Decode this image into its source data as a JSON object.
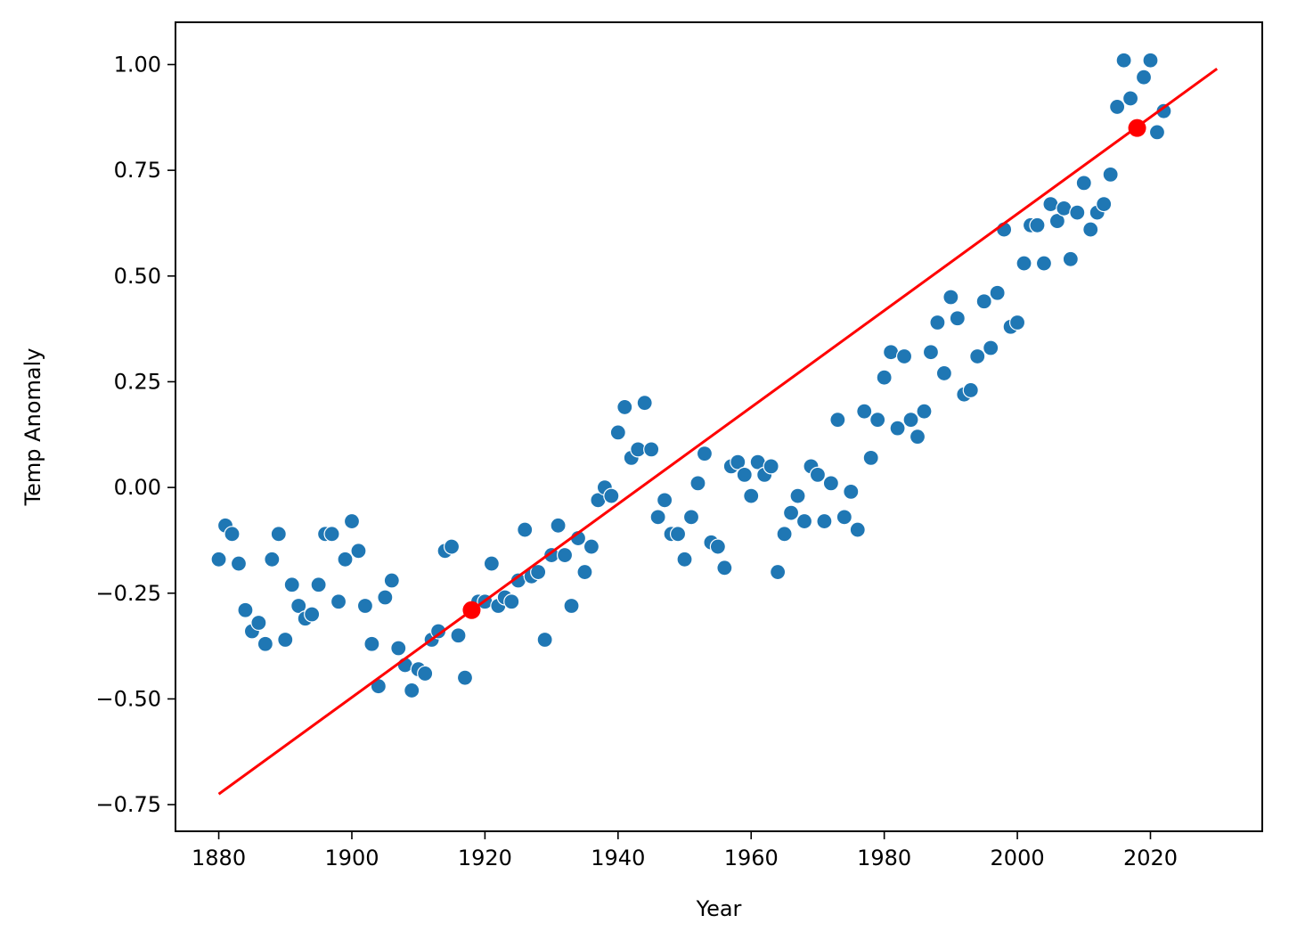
{
  "chart_data": {
    "type": "scatter",
    "title": "",
    "xlabel": "Year",
    "ylabel": "Temp Anomaly",
    "xlim": [
      1873.5,
      2036.8
    ],
    "ylim": [
      -0.813,
      1.1
    ],
    "xticks": [
      1880,
      1900,
      1920,
      1940,
      1960,
      1980,
      2000,
      2020
    ],
    "xtick_labels": [
      "1880",
      "1900",
      "1920",
      "1940",
      "1960",
      "1980",
      "2000",
      "2020"
    ],
    "yticks": [
      -0.75,
      -0.5,
      -0.25,
      0.0,
      0.25,
      0.5,
      0.75,
      1.0
    ],
    "ytick_labels": [
      "−0.75",
      "−0.50",
      "−0.25",
      "0.00",
      "0.25",
      "0.50",
      "0.75",
      "1.00"
    ],
    "grid": false,
    "colors": {
      "points": "#1f77b4",
      "trend": "#ff0000",
      "highlight": "#ff0000"
    },
    "series": [
      {
        "x": [
          1880,
          1881,
          1882,
          1883,
          1884,
          1885,
          1886,
          1887,
          1888,
          1889,
          1890,
          1891,
          1892,
          1893,
          1894,
          1895,
          1896,
          1897,
          1898,
          1899,
          1900,
          1901,
          1902,
          1903,
          1904,
          1905,
          1906,
          1907,
          1908,
          1909,
          1910,
          1911,
          1912,
          1913,
          1914,
          1915,
          1916,
          1917,
          1918,
          1919,
          1920,
          1921,
          1922,
          1923,
          1924,
          1925,
          1926,
          1927,
          1928,
          1929,
          1930,
          1931,
          1932,
          1933,
          1934,
          1935,
          1936,
          1937,
          1938,
          1939,
          1940,
          1941,
          1942,
          1943,
          1944,
          1945,
          1946,
          1947,
          1948,
          1949,
          1950,
          1951,
          1952,
          1953,
          1954,
          1955,
          1956,
          1957,
          1958,
          1959,
          1960,
          1961,
          1962,
          1963,
          1964,
          1965,
          1966,
          1967,
          1968,
          1969,
          1970,
          1971,
          1972,
          1973,
          1974,
          1975,
          1976,
          1977,
          1978,
          1979,
          1980,
          1981,
          1982,
          1983,
          1984,
          1985,
          1986,
          1987,
          1988,
          1989,
          1990,
          1991,
          1992,
          1993,
          1994,
          1995,
          1996,
          1997,
          1998,
          1999,
          2000,
          2001,
          2002,
          2003,
          2004,
          2005,
          2006,
          2007,
          2008,
          2009,
          2010,
          2011,
          2012,
          2013,
          2014,
          2015,
          2016,
          2017,
          2018,
          2019,
          2020,
          2021,
          2022
        ],
        "y": [
          -0.17,
          -0.09,
          -0.11,
          -0.18,
          -0.29,
          -0.34,
          -0.32,
          -0.37,
          -0.17,
          -0.11,
          -0.36,
          -0.23,
          -0.28,
          -0.31,
          -0.3,
          -0.23,
          -0.11,
          -0.11,
          -0.27,
          -0.17,
          -0.08,
          -0.15,
          -0.28,
          -0.37,
          -0.47,
          -0.26,
          -0.22,
          -0.38,
          -0.42,
          -0.48,
          -0.43,
          -0.44,
          -0.36,
          -0.34,
          -0.15,
          -0.14,
          -0.35,
          -0.45,
          -0.29,
          -0.27,
          -0.27,
          -0.18,
          -0.28,
          -0.26,
          -0.27,
          -0.22,
          -0.1,
          -0.21,
          -0.2,
          -0.36,
          -0.16,
          -0.09,
          -0.16,
          -0.28,
          -0.12,
          -0.2,
          -0.14,
          -0.03,
          0.0,
          -0.02,
          0.13,
          0.19,
          0.07,
          0.09,
          0.2,
          0.09,
          -0.07,
          -0.03,
          -0.11,
          -0.11,
          -0.17,
          -0.07,
          0.01,
          0.08,
          -0.13,
          -0.14,
          -0.19,
          0.05,
          0.06,
          0.03,
          -0.02,
          0.06,
          0.03,
          0.05,
          -0.2,
          -0.11,
          -0.06,
          -0.02,
          -0.08,
          0.05,
          0.03,
          -0.08,
          0.01,
          0.16,
          -0.07,
          -0.01,
          -0.1,
          0.18,
          0.07,
          0.16,
          0.26,
          0.32,
          0.14,
          0.31,
          0.16,
          0.12,
          0.18,
          0.32,
          0.39,
          0.27,
          0.45,
          0.4,
          0.22,
          0.23,
          0.31,
          0.44,
          0.33,
          0.46,
          0.61,
          0.38,
          0.39,
          0.53,
          0.62,
          0.62,
          0.53,
          0.67,
          0.63,
          0.66,
          0.54,
          0.65,
          0.72,
          0.61,
          0.65,
          0.67,
          0.74,
          0.9,
          1.01,
          0.92,
          0.85,
          0.97,
          1.01,
          0.84,
          0.89
        ]
      }
    ],
    "trendline": {
      "x": [
        1880,
        2030
      ],
      "y": [
        -0.725,
        0.99
      ]
    },
    "highlight_points": {
      "x": [
        1918,
        2018
      ],
      "y": [
        -0.29,
        0.85
      ]
    }
  }
}
